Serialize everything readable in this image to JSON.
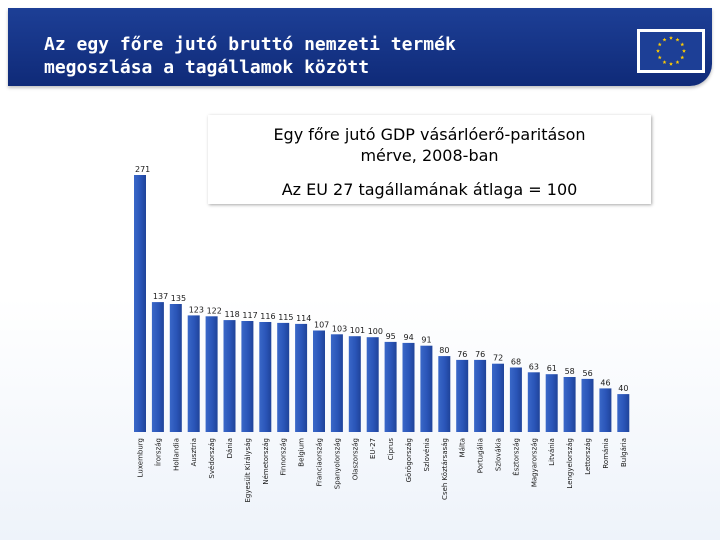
{
  "header": {
    "title_line1": "Az egy főre jutó bruttó nemzeti termék",
    "title_line2": "megoszlása a tagállamok között",
    "flag_icon": "eu-flag-icon"
  },
  "colors": {
    "header_bg": "#153483",
    "bar": "#2a55b8",
    "eu_star": "#ffcc00"
  },
  "chart_data": {
    "type": "bar",
    "title": "Egy főre jutó GDP vásárlóerő-paritáson mérve, 2008-ban",
    "title_line1": "Egy főre jutó GDP vásárlóerő-paritáson",
    "title_line2": "mérve, 2008-ban",
    "subtitle": "Az EU 27 tagállamának átlaga = 100",
    "categories": [
      "Luxemburg",
      "Írország",
      "Hollandia",
      "Ausztria",
      "Svédország",
      "Dánia",
      "Egyesült Királyság",
      "Németország",
      "Finnország",
      "Belgium",
      "Franciaország",
      "Spanyolország",
      "Olaszország",
      "EU-27",
      "Ciprus",
      "Görögország",
      "Szlovénia",
      "Cseh Köztársaság",
      "Málta",
      "Portugália",
      "Szlovákia",
      "Észtország",
      "Magyarország",
      "Litvánia",
      "Lengyelország",
      "Lettország",
      "Románia",
      "Bulgária"
    ],
    "values": [
      271,
      137,
      135,
      123,
      122,
      118,
      117,
      116,
      115,
      114,
      107,
      103,
      101,
      100,
      95,
      94,
      91,
      80,
      76,
      76,
      72,
      68,
      63,
      61,
      58,
      56,
      46,
      40
    ],
    "value_labels": [
      "271",
      "137",
      "135",
      "123",
      "122",
      "118",
      "117",
      "116",
      "115",
      "114",
      "107",
      "103",
      "101",
      "100",
      "95",
      "94",
      "91",
      "80",
      "76",
      "76",
      "72",
      "68",
      "63",
      "61",
      "58",
      "56",
      "46",
      "40"
    ],
    "ylim": [
      0,
      271
    ],
    "grid": false,
    "legend": "none"
  }
}
